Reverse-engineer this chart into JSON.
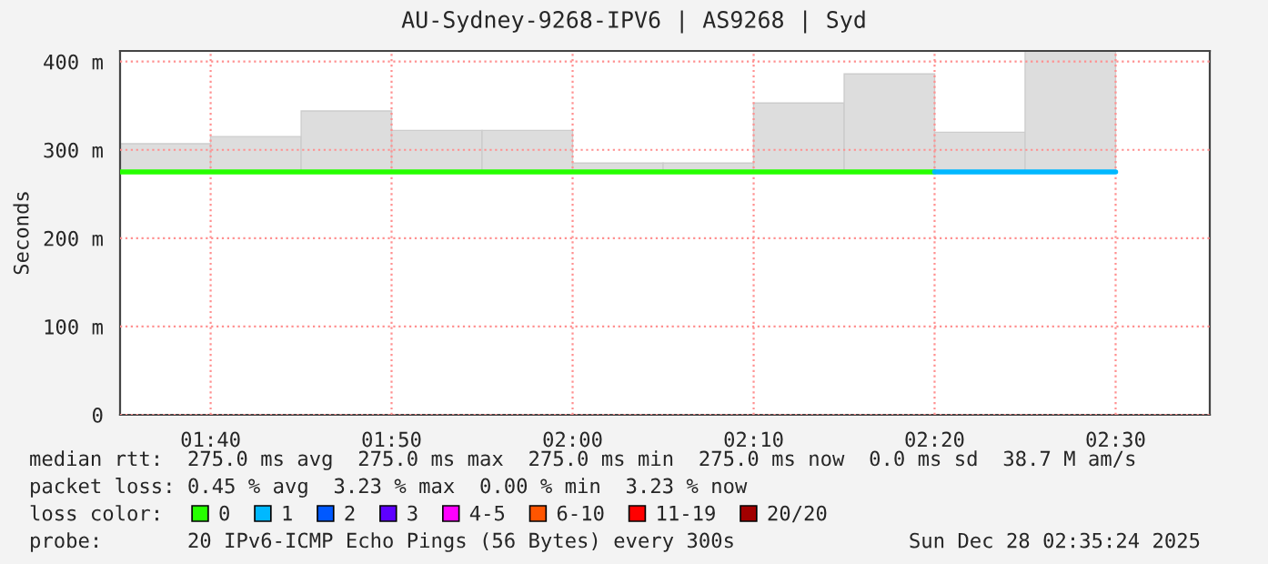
{
  "chart_data": {
    "type": "step",
    "title": "AU-Sydney-9268-IPV6 | AS9268 | Syd",
    "ylabel": "Seconds",
    "xlim": [
      1.5833,
      2.5867
    ],
    "xticks": [
      {
        "value": 1.6667,
        "label": "01:40"
      },
      {
        "value": 1.8333,
        "label": "01:50"
      },
      {
        "value": 2.0,
        "label": "02:00"
      },
      {
        "value": 2.1667,
        "label": "02:10"
      },
      {
        "value": 2.3333,
        "label": "02:20"
      },
      {
        "value": 2.5,
        "label": "02:30"
      }
    ],
    "ylim": [
      0,
      412
    ],
    "yticks": [
      0,
      {
        "value": 100,
        "label": "100 m"
      },
      {
        "value": 200,
        "label": "200 m"
      },
      {
        "value": 300,
        "label": "300 m"
      },
      {
        "value": 400,
        "label": "400 m"
      }
    ],
    "grid": true,
    "legend": "bottom",
    "legend_title": "loss color:",
    "series": [
      {
        "type": "bar",
        "color": "#dddddd",
        "x": [
          1.625,
          1.7083,
          1.7917,
          1.875,
          1.9583,
          2.0417,
          2.125,
          2.2083,
          2.2917,
          2.375,
          2.4583
        ],
        "base": [
          275,
          275,
          275,
          275,
          275,
          275,
          275,
          275,
          275,
          275,
          275
        ],
        "values": [
          32,
          40,
          69,
          47,
          47,
          10,
          10,
          78,
          111,
          45,
          137
        ]
      },
      {
        "name": "0",
        "color": "#26ff00",
        "x": [
          1.5833,
          1.6667,
          1.75,
          1.8333,
          1.9167,
          2.0,
          2.0833,
          2.1667,
          2.25,
          2.3333
        ],
        "values": [
          275,
          275,
          275,
          275,
          275,
          275,
          275,
          275,
          275,
          275
        ]
      },
      {
        "name": "1",
        "color": "#00b8ff",
        "x": [
          2.3333,
          2.4167,
          2.5
        ],
        "values": [
          275,
          275,
          275
        ]
      },
      {
        "name": "2",
        "color": "#0059ff"
      },
      {
        "name": "3",
        "color": "#5e00ff"
      },
      {
        "name": "4-5",
        "color": "#ff00ff"
      },
      {
        "name": "6-10",
        "color": "#ff5500"
      },
      {
        "name": "11-19",
        "color": "#ff0000"
      },
      {
        "name": "20/20",
        "color": "#a10000"
      }
    ],
    "annotations": [
      "median rtt:  275.0 ms avg  275.0 ms max  275.0 ms min  275.0 ms now  0.0 ms sd  38.7 M am/s",
      "packet loss: 0.45 % avg  3.23 % max  0.00 % min  3.23 % now",
      "probe:       20 IPv6-ICMP Echo Pings (56 Bytes) every 300s",
      "Sun Dec 28 02:35:24 2025"
    ]
  }
}
